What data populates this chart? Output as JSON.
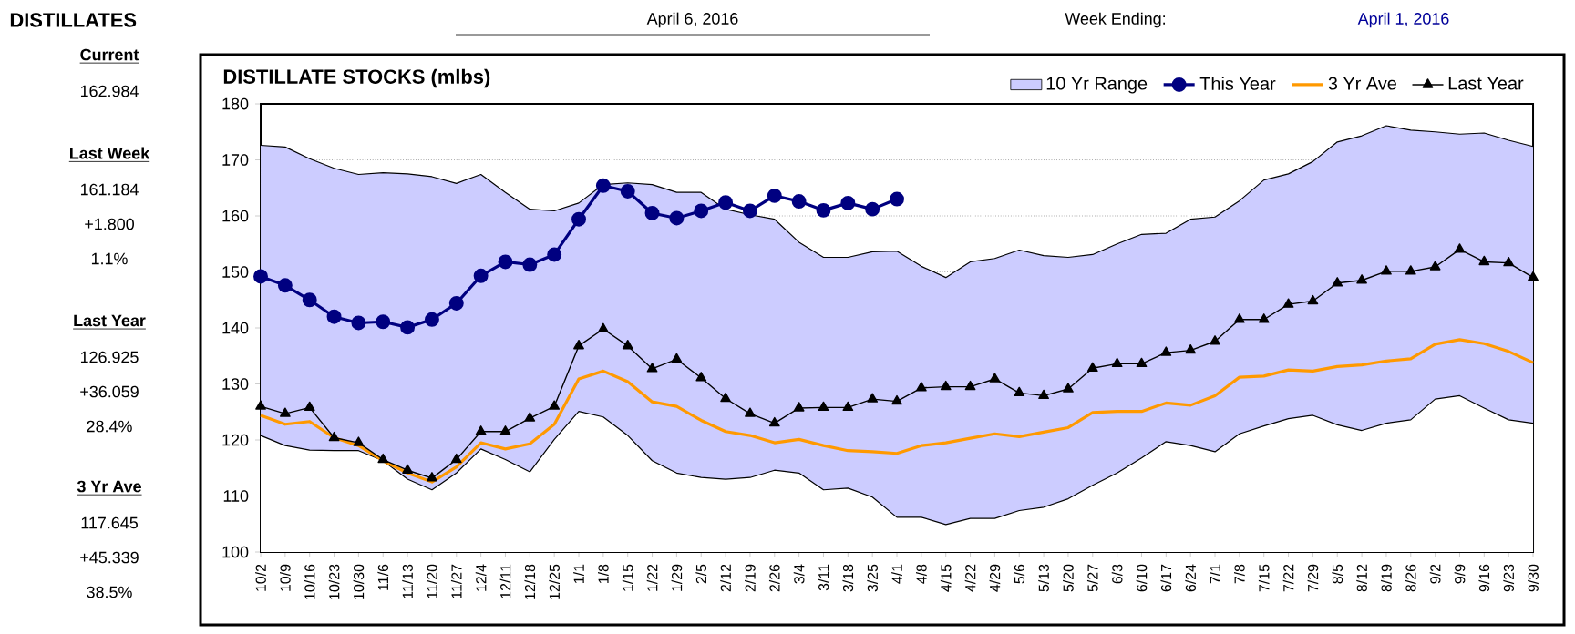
{
  "chart_data": {
    "type": "line",
    "title": "DISTILLATE STOCKS (mlbs)",
    "categories": [
      "10/2",
      "10/9",
      "10/16",
      "10/23",
      "10/30",
      "11/6",
      "11/13",
      "11/20",
      "11/27",
      "12/4",
      "12/11",
      "12/18",
      "12/25",
      "1/1",
      "1/8",
      "1/15",
      "1/22",
      "1/29",
      "2/5",
      "2/12",
      "2/19",
      "2/26",
      "3/4",
      "3/11",
      "3/18",
      "3/25",
      "4/1",
      "4/8",
      "4/15",
      "4/22",
      "4/29",
      "5/6",
      "5/13",
      "5/20",
      "5/27",
      "6/3",
      "6/10",
      "6/17",
      "6/24",
      "7/1",
      "7/8",
      "7/15",
      "7/22",
      "7/29",
      "8/5",
      "8/12",
      "8/19",
      "8/26",
      "9/2",
      "9/9",
      "9/16",
      "9/23",
      "9/30"
    ],
    "series": [
      {
        "type": "area",
        "color": "#ffffff",
        "values": [
          120.8,
          119.0,
          118.2,
          118.1,
          118.1,
          116.3,
          113.0,
          111.1,
          114.1,
          118.4,
          116.5,
          114.3,
          120.1,
          125.1,
          124.1,
          120.8,
          116.3,
          114.1,
          113.3,
          113.0,
          113.3,
          114.6,
          114.1,
          111.1,
          111.4,
          109.8,
          106.2,
          106.2,
          104.9,
          106.0,
          106.0,
          107.4,
          108.0,
          109.5,
          111.9,
          114.1,
          116.8,
          119.7,
          119.0,
          117.9,
          121.1,
          122.5,
          123.8,
          124.4,
          122.7,
          121.7,
          123.0,
          123.6,
          127.3,
          127.9,
          125.7,
          123.6,
          123.0
        ]
      },
      {
        "name": "10 Yr Range",
        "type": "area",
        "color": "#ccccff",
        "values": [
          172.6,
          172.3,
          170.2,
          168.5,
          167.4,
          167.7,
          167.5,
          167.0,
          165.8,
          167.4,
          164.2,
          161.2,
          160.9,
          162.3,
          165.6,
          165.9,
          165.6,
          164.2,
          164.2,
          161.2,
          160.2,
          159.4,
          155.3,
          152.6,
          152.6,
          153.6,
          153.7,
          151.0,
          149.0,
          151.8,
          152.4,
          153.9,
          152.9,
          152.6,
          153.1,
          155.0,
          156.7,
          156.9,
          159.4,
          159.8,
          162.7,
          166.4,
          167.5,
          169.7,
          173.2,
          174.3,
          176.1,
          175.3,
          175.0,
          174.6,
          174.8,
          173.5,
          172.4
        ]
      },
      {
        "name": "This Year",
        "type": "line",
        "color": "#000080",
        "marker": "circle",
        "values": [
          149.2,
          147.6,
          145.0,
          142.0,
          140.9,
          141.1,
          140.1,
          141.5,
          144.4,
          149.3,
          151.8,
          151.3,
          153.1,
          159.4,
          165.4,
          164.4,
          160.5,
          159.6,
          160.9,
          162.4,
          160.9,
          163.6,
          162.6,
          161.0,
          162.3,
          161.2,
          163.0,
          null,
          null,
          null,
          null,
          null,
          null,
          null,
          null,
          null,
          null,
          null,
          null,
          null,
          null,
          null,
          null,
          null,
          null,
          null,
          null,
          null,
          null,
          null,
          null,
          null,
          null
        ]
      },
      {
        "name": "3 Yr Ave",
        "type": "line",
        "color": "#ff9900",
        "marker": "none",
        "values": [
          124.4,
          122.8,
          123.3,
          120.4,
          119.0,
          116.3,
          114.1,
          112.5,
          115.2,
          119.5,
          118.4,
          119.3,
          122.8,
          130.9,
          132.3,
          130.4,
          126.8,
          126.0,
          123.5,
          121.5,
          120.8,
          119.5,
          120.1,
          119.0,
          118.1,
          117.9,
          117.6,
          119.0,
          119.5,
          120.3,
          121.1,
          120.6,
          121.4,
          122.2,
          124.9,
          125.1,
          125.1,
          126.6,
          126.2,
          127.9,
          131.2,
          131.4,
          132.5,
          132.3,
          133.1,
          133.4,
          134.1,
          134.5,
          137.1,
          137.9,
          137.2,
          135.8,
          133.8
        ]
      },
      {
        "name": "Last Year",
        "type": "line",
        "color": "#000000",
        "marker": "triangle",
        "values": [
          126.0,
          124.7,
          125.8,
          120.4,
          119.5,
          116.5,
          114.6,
          113.2,
          116.5,
          121.5,
          121.5,
          123.9,
          126.0,
          136.8,
          139.8,
          136.8,
          132.7,
          134.4,
          131.1,
          127.4,
          124.7,
          123.0,
          125.7,
          125.8,
          125.8,
          127.3,
          126.9,
          129.3,
          129.5,
          129.5,
          130.9,
          128.4,
          127.9,
          129.1,
          132.8,
          133.6,
          133.6,
          135.6,
          136.0,
          137.6,
          141.5,
          141.5,
          144.2,
          144.8,
          148.0,
          148.5,
          150.1,
          150.1,
          150.9,
          154.0,
          151.8,
          151.6,
          149.0
        ]
      }
    ],
    "ylim": [
      100,
      180
    ],
    "yticks": [
      100,
      110,
      120,
      130,
      140,
      150,
      160,
      170,
      180
    ],
    "grid": "y",
    "legend": "top right",
    "annotations": [
      "DISTILLATES",
      "April 6, 2016",
      "Week Ending:",
      "April 1, 2016",
      "Current",
      "162.984",
      "Last Week",
      "161.184",
      "+1.800",
      "1.1%",
      "Last Year",
      "126.925",
      "+36.059",
      "28.4%",
      "3 Yr Ave",
      "117.645",
      "+45.339",
      "38.5%"
    ]
  }
}
